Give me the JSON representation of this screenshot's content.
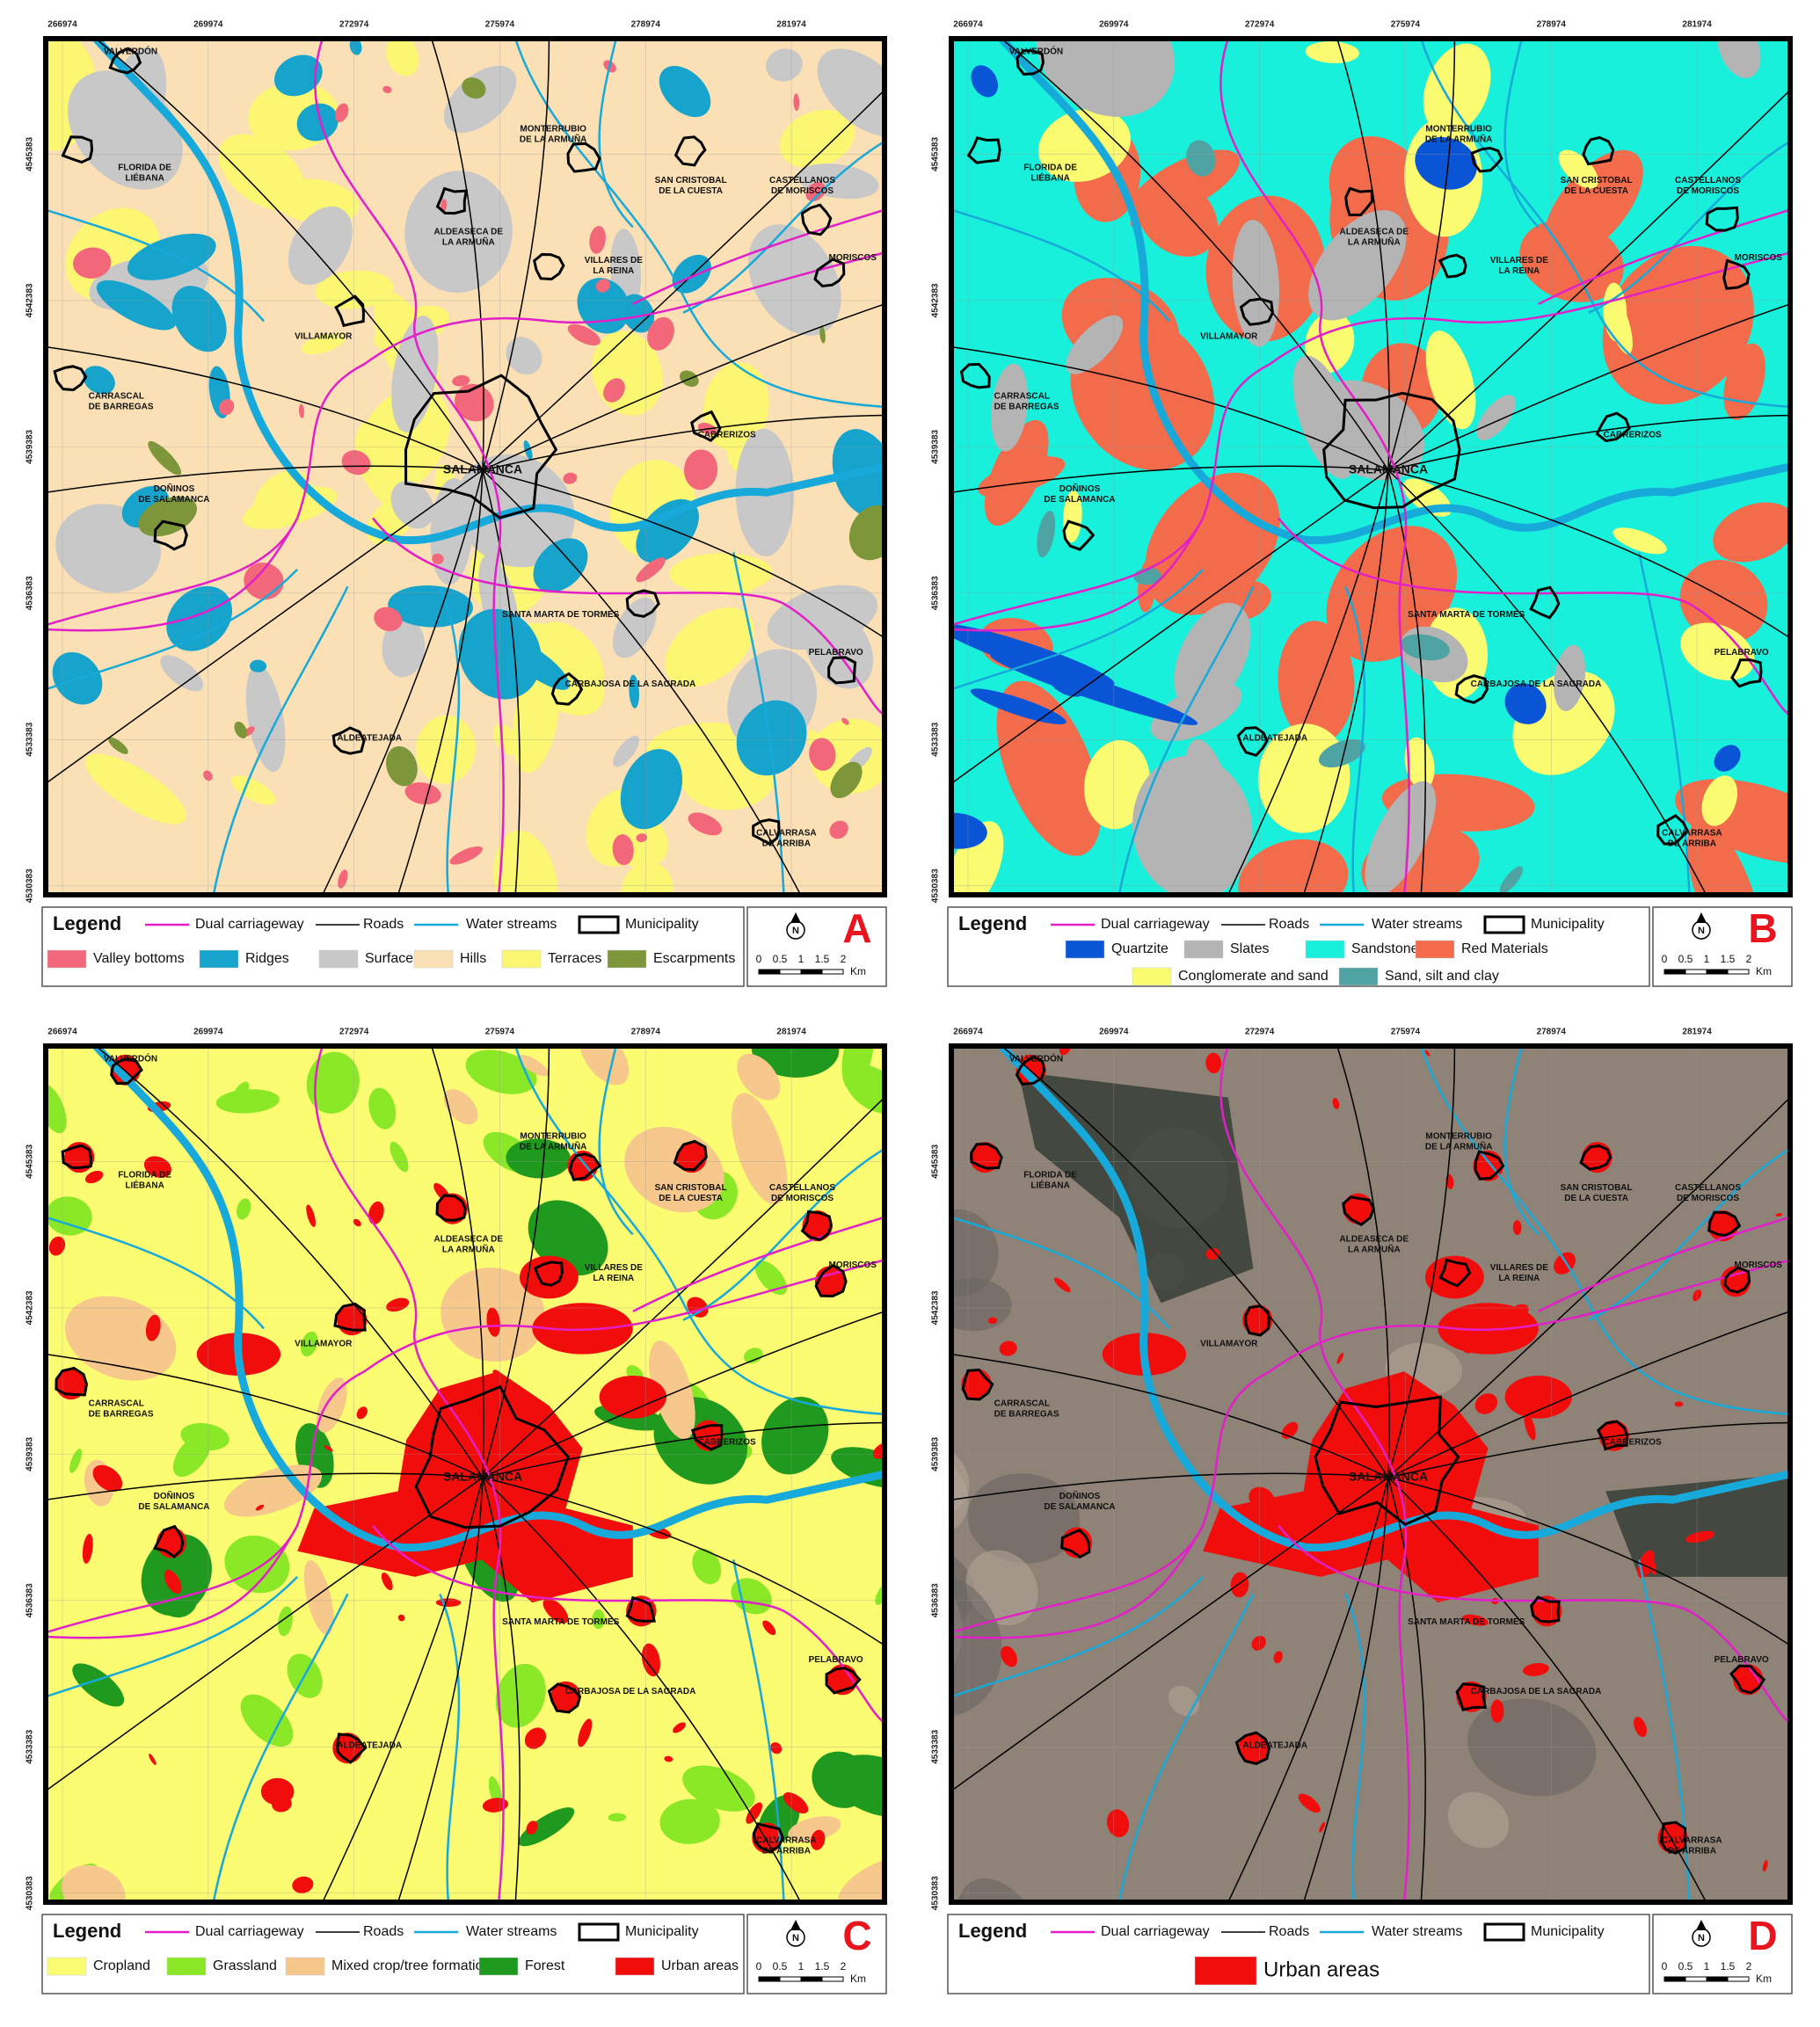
{
  "coordinates": {
    "x": [
      266974,
      269974,
      272974,
      275974,
      278974,
      281974
    ],
    "y": [
      4545383,
      4542383,
      4539383,
      4536383,
      4533383,
      4530383
    ]
  },
  "places": [
    [
      "VALVERDÓN"
    ],
    [
      "FLORIDA DE",
      "LIÉBANA"
    ],
    [
      "MONTERRUBIO",
      "DE LA ARMUÑA"
    ],
    [
      "SAN CRISTOBAL",
      "DE LA CUESTA"
    ],
    [
      "CASTELLANOS",
      "DE MORISCOS"
    ],
    [
      "ALDEASECA DE",
      "LA ARMUÑA"
    ],
    [
      "VILLARES DE",
      "LA REINA"
    ],
    [
      "MORISCOS"
    ],
    [
      "VILLAMAYOR"
    ],
    [
      "CARRASCAL",
      "DE BARREGAS"
    ],
    [
      "CABRERIZOS"
    ],
    [
      "SALAMANCA"
    ],
    [
      "DOÑINOS",
      "DE SALAMANCA"
    ],
    [
      "SANTA MARTA DE TORMES"
    ],
    [
      "PELABRAVO"
    ],
    [
      "CARBAJOSA DE LA SAGRADA"
    ],
    [
      "ALDEATEJADA"
    ],
    [
      "CALVARRASA",
      "DE ARRIBA"
    ]
  ],
  "legend": {
    "title": "Legend",
    "lines": [
      {
        "label": "Dual carriageway",
        "color": "#e21fc9"
      },
      {
        "label": "Roads",
        "color": "#000000"
      },
      {
        "label": "Water streams",
        "color": "#17a9d9"
      },
      {
        "label": "Municipality",
        "color": "#000000"
      }
    ]
  },
  "scale_bar": {
    "north": "N",
    "ticks": [
      0,
      0.5,
      1,
      1.5,
      2
    ],
    "unit": "Km"
  },
  "panels": [
    {
      "letter": "A",
      "classes": [
        {
          "label": "Valley bottoms",
          "color": "#f2677a"
        },
        {
          "label": "Ridges",
          "color": "#16a3cc"
        },
        {
          "label": "Surfaces",
          "color": "#c8c8c8"
        },
        {
          "label": "Hills",
          "color": "#fae0b4"
        },
        {
          "label": "Terraces",
          "color": "#fbf772"
        },
        {
          "label": "Escarpments",
          "color": "#7d963a"
        }
      ]
    },
    {
      "letter": "B",
      "classes": [
        {
          "label": "Quartzite",
          "color": "#0a55d6"
        },
        {
          "label": "Slates",
          "color": "#b4b4b4"
        },
        {
          "label": "Sandstone",
          "color": "#18f0dc"
        },
        {
          "label": "Red Materials",
          "color": "#f26b4b"
        },
        {
          "label": "Conglomerate and sand",
          "color": "#fbfb72"
        },
        {
          "label": "Sand, silt and clay",
          "color": "#4fa3a3"
        }
      ]
    },
    {
      "letter": "C",
      "classes": [
        {
          "label": "Cropland",
          "color": "#fcfc72"
        },
        {
          "label": "Grassland",
          "color": "#8ae826"
        },
        {
          "label": "Mixed crop/tree formations",
          "color": "#f6c88c"
        },
        {
          "label": "Forest",
          "color": "#1f9a1f"
        },
        {
          "label": "Urban areas",
          "color": "#f20d0d"
        }
      ]
    },
    {
      "letter": "D",
      "classes": [
        {
          "label": "Urban areas",
          "color": "#f20d0d"
        }
      ]
    }
  ]
}
